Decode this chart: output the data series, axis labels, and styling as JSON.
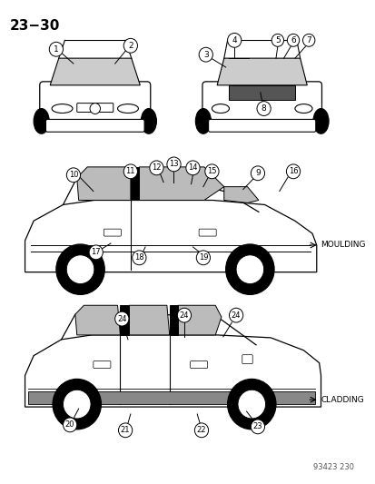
{
  "title": "23−30",
  "bg_color": "#ffffff",
  "title_fontsize": 11,
  "moulding_text": "MOULDING",
  "cladding_text": "CLADDING",
  "part_number": "93423 230"
}
